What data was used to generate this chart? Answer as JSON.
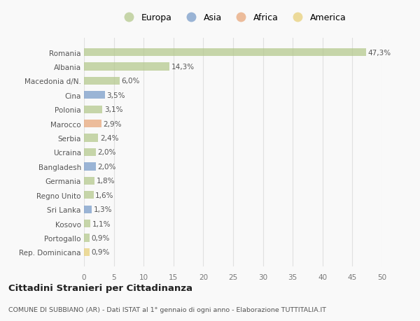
{
  "categories": [
    "Romania",
    "Albania",
    "Macedonia d/N.",
    "Cina",
    "Polonia",
    "Marocco",
    "Serbia",
    "Ucraina",
    "Bangladesh",
    "Germania",
    "Regno Unito",
    "Sri Lanka",
    "Kosovo",
    "Portogallo",
    "Rep. Dominicana"
  ],
  "values": [
    47.3,
    14.3,
    6.0,
    3.5,
    3.1,
    2.9,
    2.4,
    2.0,
    2.0,
    1.8,
    1.6,
    1.3,
    1.1,
    0.9,
    0.9
  ],
  "labels": [
    "47,3%",
    "14,3%",
    "6,0%",
    "3,5%",
    "3,1%",
    "2,9%",
    "2,4%",
    "2,0%",
    "2,0%",
    "1,8%",
    "1,6%",
    "1,3%",
    "1,1%",
    "0,9%",
    "0,9%"
  ],
  "colors": [
    "#b5c98e",
    "#b5c98e",
    "#b5c98e",
    "#7b9dc9",
    "#b5c98e",
    "#e8a87c",
    "#b5c98e",
    "#b5c98e",
    "#7b9dc9",
    "#b5c98e",
    "#b5c98e",
    "#7b9dc9",
    "#b5c98e",
    "#b5c98e",
    "#e8d07a"
  ],
  "legend_labels": [
    "Europa",
    "Asia",
    "Africa",
    "America"
  ],
  "legend_colors": [
    "#b5c98e",
    "#7b9dc9",
    "#e8a87c",
    "#e8d07a"
  ],
  "title": "Cittadini Stranieri per Cittadinanza",
  "subtitle": "COMUNE DI SUBBIANO (AR) - Dati ISTAT al 1° gennaio di ogni anno - Elaborazione TUTTITALIA.IT",
  "xlim": [
    0,
    50
  ],
  "xticks": [
    0,
    5,
    10,
    15,
    20,
    25,
    30,
    35,
    40,
    45,
    50
  ],
  "background_color": "#f9f9f9",
  "grid_color": "#e0e0e0",
  "bar_alpha": 0.75
}
